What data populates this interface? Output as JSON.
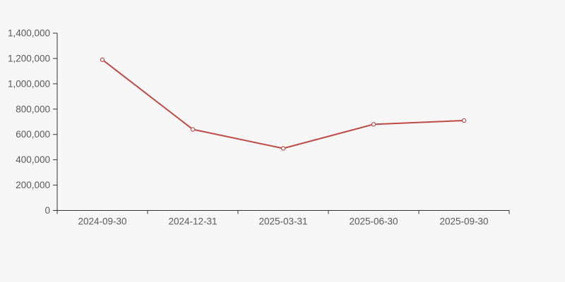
{
  "page": {
    "background_color": "#f7f7f7"
  },
  "chart_data": {
    "type": "line",
    "title": "",
    "xlabel": "",
    "ylabel": "",
    "categories": [
      "2024-09-30",
      "2024-12-31",
      "2025-03-31",
      "2025-06-30",
      "2025-09-30"
    ],
    "series": [
      {
        "name": "value",
        "values": [
          1190000,
          640000,
          490000,
          680000,
          710000
        ]
      }
    ],
    "ylim": [
      0,
      1400000
    ],
    "ytick_interval": 200000,
    "ytick_labels": [
      "0",
      "200,000",
      "400,000",
      "600,000",
      "800,000",
      "1,000,000",
      "1,200,000",
      "1,400,000"
    ],
    "grid": false,
    "legend_position": "none",
    "line_color": "#bf4b47",
    "marker_style": "hollow-circle",
    "marker_fill": "#ffffff",
    "axis_color": "#333333",
    "tick_label_color": "#595959",
    "background_color": "#f7f7f7"
  }
}
